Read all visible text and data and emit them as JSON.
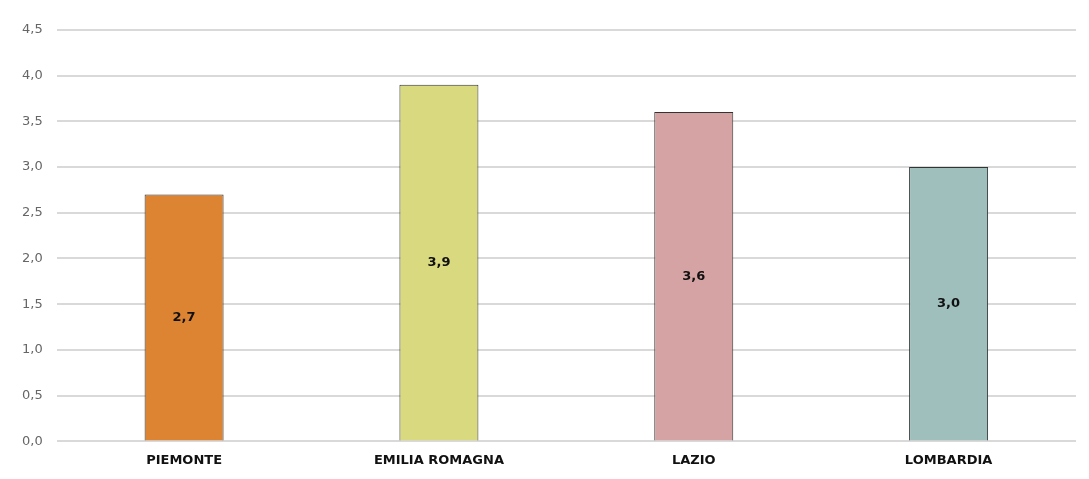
{
  "chart_data": {
    "type": "bar",
    "categories": [
      "PIEMONTE",
      "EMILIA ROMAGNA",
      "LAZIO",
      "LOMBARDIA"
    ],
    "values": [
      2.7,
      3.9,
      3.6,
      3.0
    ],
    "value_labels": [
      "2,7",
      "3,9",
      "3,6",
      "3,0"
    ],
    "colors": [
      "#dc8432",
      "#d9d97f",
      "#d5a3a3",
      "#9fbfbd"
    ],
    "ylim": [
      0,
      4.5
    ],
    "yticks": [
      {
        "value": 0,
        "label": "0,0"
      },
      {
        "value": 0.5,
        "label": "0,5"
      },
      {
        "value": 1,
        "label": "1,0"
      },
      {
        "value": 1.5,
        "label": "1,5"
      },
      {
        "value": 2,
        "label": "2,0"
      },
      {
        "value": 2.5,
        "label": "2,5"
      },
      {
        "value": 3,
        "label": "3,0"
      },
      {
        "value": 3.5,
        "label": "3,5"
      },
      {
        "value": 4,
        "label": "4,0"
      },
      {
        "value": 4.5,
        "label": "4,5"
      }
    ],
    "grid": "y",
    "legend": false
  }
}
